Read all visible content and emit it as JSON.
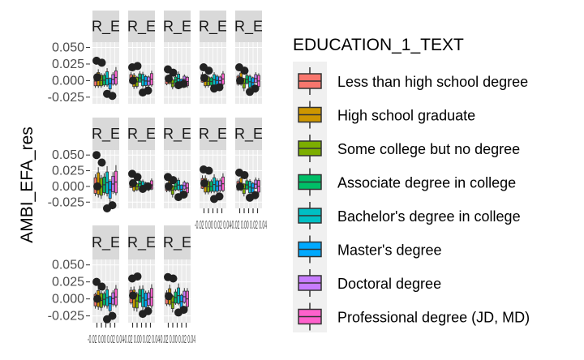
{
  "chart_data": {
    "type": "boxplot",
    "ylabel": "AMBI_EFA_res",
    "y_ticks": [
      "0.050",
      "0.025",
      "0.000",
      "-0.025"
    ],
    "y_tick_values": [
      0.05,
      0.025,
      0.0,
      -0.025
    ],
    "ylim": [
      -0.035,
      0.058
    ],
    "strip_label": "R_E",
    "x_tick_text": "-0.02 0.00 0.02 0.04",
    "legend": {
      "title": "EDUCATION_1_TEXT",
      "placement": "right",
      "entries": [
        {
          "label": "Less than high school degree",
          "color": "#F8766D"
        },
        {
          "label": "High school graduate",
          "color": "#CD9600"
        },
        {
          "label": "Some college but no degree",
          "color": "#7CAE00"
        },
        {
          "label": "Associate degree in college",
          "color": "#00BE67"
        },
        {
          "label": "Bachelor's degree in college",
          "color": "#00BFC4"
        },
        {
          "label": "Master's degree",
          "color": "#00A9FF"
        },
        {
          "label": "Doctoral degree",
          "color": "#C77CFF"
        },
        {
          "label": "Professional degree (JD, MD)",
          "color": "#FF61CC"
        }
      ]
    },
    "panels": [
      {
        "points": [
          0.03,
          0.027,
          -0.02,
          -0.023,
          0.005
        ],
        "box": [
          -0.012,
          0.016
        ]
      },
      {
        "points": [
          0.02,
          0.022,
          -0.018,
          -0.015,
          0.0
        ],
        "box": [
          -0.01,
          0.014
        ]
      },
      {
        "points": [
          0.017,
          0.012,
          -0.007,
          -0.005,
          0.003
        ],
        "box": [
          -0.008,
          0.01
        ]
      },
      {
        "points": [
          0.02,
          0.015,
          -0.012,
          -0.01,
          0.004
        ],
        "box": [
          -0.01,
          0.012
        ]
      },
      {
        "points": [
          0.02,
          0.015,
          -0.017,
          -0.012,
          0.0
        ],
        "box": [
          -0.012,
          0.012
        ]
      },
      {
        "points": [
          0.05,
          0.038,
          -0.035,
          -0.03,
          0.0
        ],
        "box": [
          -0.02,
          0.028
        ]
      },
      {
        "points": [
          0.02,
          0.015,
          -0.004,
          0.0,
          0.005
        ],
        "box": [
          -0.006,
          0.012
        ]
      },
      {
        "points": [
          0.015,
          0.01,
          -0.017,
          -0.013,
          0.0
        ],
        "box": [
          -0.012,
          0.01
        ]
      },
      {
        "points": [
          0.027,
          0.025,
          -0.02,
          -0.016,
          0.005
        ],
        "box": [
          -0.012,
          0.018
        ]
      },
      {
        "points": [
          0.022,
          0.018,
          -0.018,
          -0.014,
          0.0
        ],
        "box": [
          -0.012,
          0.014
        ]
      },
      {
        "points": [
          0.025,
          0.018,
          -0.03,
          -0.025,
          0.0
        ],
        "box": [
          -0.018,
          0.016
        ]
      },
      {
        "points": [
          0.03,
          0.033,
          -0.022,
          -0.018,
          0.005
        ],
        "box": [
          -0.016,
          0.02
        ]
      },
      {
        "points": [
          0.032,
          0.03,
          -0.02,
          -0.016,
          0.004
        ],
        "box": [
          -0.014,
          0.018
        ]
      }
    ]
  }
}
